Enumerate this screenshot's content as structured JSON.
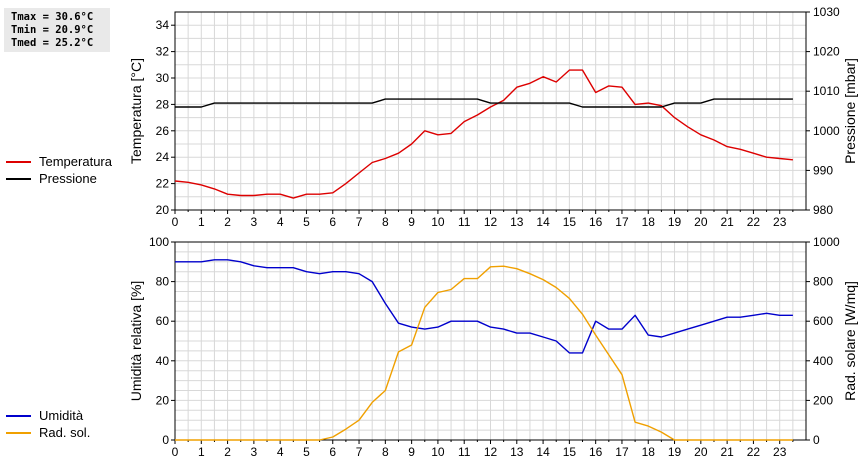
{
  "stats": [
    "Tmax = 30.6°C",
    "Tmin = 20.9°C",
    "Tmed = 25.2°C"
  ],
  "chart_data": [
    {
      "type": "line",
      "x": [
        0,
        0.5,
        1,
        1.5,
        2,
        2.5,
        3,
        3.5,
        4,
        4.5,
        5,
        5.5,
        6,
        6.5,
        7,
        7.5,
        8,
        8.5,
        9,
        9.5,
        10,
        10.5,
        11,
        11.5,
        12,
        12.5,
        13,
        13.5,
        14,
        14.5,
        15,
        15.5,
        16,
        16.5,
        17,
        17.5,
        18,
        18.5,
        19,
        19.5,
        20,
        20.5,
        21,
        21.5,
        22,
        22.5,
        23,
        23.5
      ],
      "xticks": [
        "0",
        "1",
        "2",
        "3",
        "4",
        "5",
        "6",
        "7",
        "8",
        "9",
        "10",
        "11",
        "12",
        "13",
        "14",
        "15",
        "16",
        "17",
        "18",
        "19",
        "20",
        "21",
        "22",
        "23"
      ],
      "xlim": [
        0,
        24
      ],
      "ylabel_left": "Temperatura [°C]",
      "ylim_left": [
        20,
        35
      ],
      "yticks_left": [
        "20",
        "22",
        "24",
        "26",
        "28",
        "30",
        "32",
        "34"
      ],
      "ylabel_right": "Pressione [mbar]",
      "ylim_right": [
        980,
        1030
      ],
      "yticks_right": [
        "980",
        "990",
        "1000",
        "1010",
        "1020",
        "1030"
      ],
      "grid": true,
      "legend_position": "left",
      "series": [
        {
          "name": "Temperatura",
          "axis": "left",
          "color": "#dd0000",
          "values": [
            22.2,
            22.1,
            21.9,
            21.6,
            21.2,
            21.1,
            21.1,
            21.2,
            21.2,
            20.9,
            21.2,
            21.2,
            21.3,
            22.0,
            22.8,
            23.6,
            23.9,
            24.3,
            25.0,
            26.0,
            25.7,
            25.8,
            26.7,
            27.2,
            27.8,
            28.3,
            29.3,
            29.6,
            30.1,
            29.7,
            30.6,
            30.6,
            28.9,
            29.4,
            29.3,
            28.0,
            28.1,
            27.9,
            27.0,
            26.3,
            25.7,
            25.3,
            24.8,
            24.6,
            24.3,
            24.0,
            23.9,
            23.8
          ]
        },
        {
          "name": "Pressione",
          "axis": "right",
          "color": "#000000",
          "values": [
            1006,
            1006,
            1006,
            1007,
            1007,
            1007,
            1007,
            1007,
            1007,
            1007,
            1007,
            1007,
            1007,
            1007,
            1007,
            1007,
            1008,
            1008,
            1008,
            1008,
            1008,
            1008,
            1008,
            1008,
            1007,
            1007,
            1007,
            1007,
            1007,
            1007,
            1007,
            1006,
            1006,
            1006,
            1006,
            1006,
            1006,
            1006,
            1007,
            1007,
            1007,
            1008,
            1008,
            1008,
            1008,
            1008,
            1008,
            1008
          ]
        }
      ]
    },
    {
      "type": "line",
      "x": [
        0,
        0.5,
        1,
        1.5,
        2,
        2.5,
        3,
        3.5,
        4,
        4.5,
        5,
        5.5,
        6,
        6.5,
        7,
        7.5,
        8,
        8.5,
        9,
        9.5,
        10,
        10.5,
        11,
        11.5,
        12,
        12.5,
        13,
        13.5,
        14,
        14.5,
        15,
        15.5,
        16,
        16.5,
        17,
        17.5,
        18,
        18.5,
        19,
        19.5,
        20,
        20.5,
        21,
        21.5,
        22,
        22.5,
        23,
        23.5
      ],
      "xticks": [
        "0",
        "1",
        "2",
        "3",
        "4",
        "5",
        "6",
        "7",
        "8",
        "9",
        "10",
        "11",
        "12",
        "13",
        "14",
        "15",
        "16",
        "17",
        "18",
        "19",
        "20",
        "21",
        "22",
        "23"
      ],
      "xlim": [
        0,
        24
      ],
      "ylabel_left": "Umidità relativa [%]",
      "ylim_left": [
        0,
        100
      ],
      "yticks_left": [
        "0",
        "20",
        "40",
        "60",
        "80",
        "100"
      ],
      "ylabel_right": "Rad. solare [W/mq]",
      "ylim_right": [
        0,
        1000
      ],
      "yticks_right": [
        "0",
        "200",
        "400",
        "600",
        "800",
        "1000"
      ],
      "grid": true,
      "legend_position": "left",
      "series": [
        {
          "name": "Umidità",
          "axis": "left",
          "color": "#0000cc",
          "values": [
            90,
            90,
            90,
            91,
            91,
            90,
            88,
            87,
            87,
            87,
            85,
            84,
            85,
            85,
            84,
            80,
            69,
            59,
            57,
            56,
            57,
            60,
            60,
            60,
            57,
            56,
            54,
            54,
            52,
            50,
            44,
            44,
            60,
            56,
            56,
            63,
            53,
            52,
            54,
            56,
            58,
            60,
            62,
            62,
            63,
            64,
            63,
            63
          ]
        },
        {
          "name": "Rad. sol.",
          "axis": "right",
          "color": "#f0a000",
          "values": [
            0,
            0,
            0,
            0,
            0,
            0,
            0,
            0,
            0,
            0,
            0,
            0,
            15,
            55,
            100,
            190,
            250,
            445,
            480,
            670,
            745,
            760,
            815,
            815,
            875,
            878,
            865,
            840,
            810,
            770,
            715,
            635,
            530,
            430,
            330,
            90,
            70,
            40,
            0,
            0,
            0,
            0,
            0,
            0,
            0,
            0,
            0,
            0
          ]
        }
      ]
    }
  ]
}
